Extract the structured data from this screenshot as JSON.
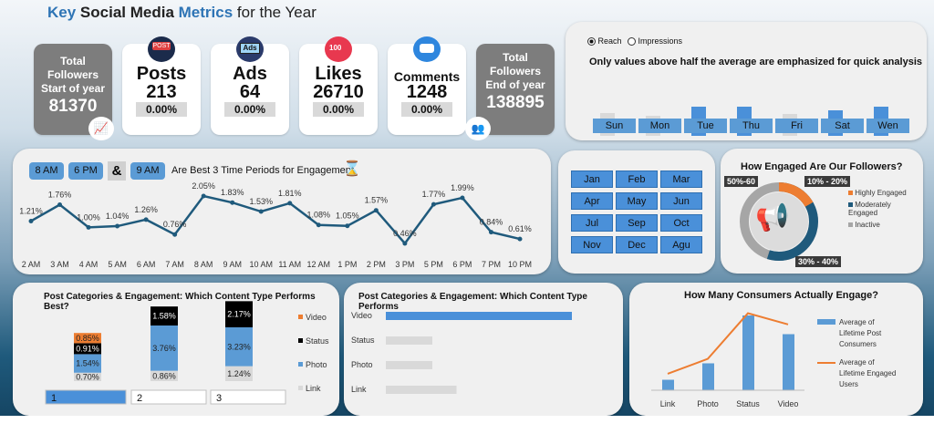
{
  "header": {
    "title_key": "Key",
    "title_social": "Social Media",
    "title_metrics": "Metrics",
    "title_rest": "for the Year"
  },
  "kpis": {
    "start": {
      "label1": "Total",
      "label2": "Followers",
      "label3": "Start of year",
      "value": "81370"
    },
    "posts": {
      "label": "Posts",
      "value": "213",
      "pct": "0.00%",
      "icon": "post-icon"
    },
    "ads": {
      "label": "Ads",
      "value": "64",
      "pct": "0.00%",
      "icon": "ads-icon"
    },
    "likes": {
      "label": "Likes",
      "value": "26710",
      "pct": "0.00%",
      "icon": "likes-icon",
      "badge": "100"
    },
    "comments": {
      "label": "Comments",
      "value": "1248",
      "pct": "0.00%",
      "icon": "comments-icon"
    },
    "end": {
      "label1": "Total",
      "label2": "Followers",
      "label3": "End of year",
      "value": "138895"
    }
  },
  "weekday_panel": {
    "option_reach": "Reach",
    "option_impressions": "Impressions",
    "selected": "Reach",
    "caption": "Only values above half the average are emphasized for quick analysis",
    "days": [
      "Sun",
      "Mon",
      "Tue",
      "Thu",
      "Fri",
      "Sat",
      "Wen"
    ],
    "emphasized": [
      false,
      false,
      true,
      true,
      false,
      true,
      true
    ],
    "relative_values": [
      0.45,
      0.4,
      0.58,
      0.58,
      0.44,
      0.5,
      0.58
    ]
  },
  "time_panel": {
    "best_1": "8 AM",
    "best_2": "6 PM",
    "amp": "&",
    "best_3": "9 AM",
    "caption": "Are Best 3 Time Periods for Engagement"
  },
  "chart_data": [
    {
      "type": "line",
      "x": [
        "2 AM",
        "3 AM",
        "4 AM",
        "5 AM",
        "6 AM",
        "7 AM",
        "8 AM",
        "9 AM",
        "10 AM",
        "11 AM",
        "12 AM",
        "1 PM",
        "2 PM",
        "3 PM",
        "5 PM",
        "6 PM",
        "7 PM",
        "10 PM"
      ],
      "values": [
        1.21,
        1.76,
        1.0,
        1.04,
        1.26,
        0.76,
        2.05,
        1.83,
        1.53,
        1.81,
        1.08,
        1.05,
        1.57,
        0.46,
        1.77,
        1.99,
        0.84,
        0.61
      ],
      "labels": [
        "1.21%",
        "1.76%",
        "1.00%",
        "1.04%",
        "1.26%",
        "0.76%",
        "2.05%",
        "1.83%",
        "1.53%",
        "1.81%",
        "1.08%",
        "1.05%",
        "1.57%",
        "0.46%",
        "1.77%",
        "1.99%",
        "0.84%",
        "0.61%"
      ],
      "color": "#1f5a7c"
    },
    {
      "type": "bar",
      "title": "Post Categories & Engagement: Which Content  Type Performs Best?",
      "stacked": true,
      "categories": [
        "1",
        "2",
        "3"
      ],
      "series": [
        {
          "name": "Video",
          "values": [
            0.85,
            0,
            0
          ],
          "labels": [
            "0.85%",
            "",
            ""
          ],
          "color": "#ed7d31"
        },
        {
          "name": "Status",
          "values": [
            0.91,
            1.58,
            2.17
          ],
          "labels": [
            "0.91%",
            "1.58%",
            "2.17%"
          ],
          "color": "#000000"
        },
        {
          "name": "Photo",
          "values": [
            1.54,
            3.76,
            3.23
          ],
          "labels": [
            "1.54%",
            "3.76%",
            "3.23%"
          ],
          "color": "#5b9bd5"
        },
        {
          "name": "Link",
          "values": [
            0.7,
            0.86,
            1.24
          ],
          "labels": [
            "0.70%",
            "0.86%",
            "1.24%"
          ],
          "color": "#d9d9d9"
        }
      ]
    },
    {
      "type": "bar",
      "title": "Post Categories & Engagement: Which Content Type Performs",
      "orientation": "horizontal",
      "categories": [
        "Video",
        "Status",
        "Photo",
        "Link"
      ],
      "values": [
        1.0,
        0.25,
        0.25,
        0.38
      ],
      "highlight": "Video"
    },
    {
      "type": "bar",
      "title": "How Many Consumers Actually Engage?",
      "categories": [
        "Link",
        "Photo",
        "Status",
        "Video"
      ],
      "series": [
        {
          "name": "Average of Lifetime Post Consumers",
          "values": [
            0.14,
            0.36,
            1.0,
            0.75
          ],
          "color": "#5b9bd5"
        },
        {
          "name": "Average of Lifetime Engaged Users",
          "values": [
            0.22,
            0.42,
            1.03,
            0.88
          ],
          "color": "#ed7d31"
        }
      ]
    }
  ],
  "months": [
    "Jan",
    "Feb",
    "Mar",
    "Apr",
    "May",
    "Jun",
    "Jul",
    "Sep",
    "Oct",
    "Nov",
    "Dec",
    "Agu"
  ],
  "engaged_panel": {
    "title": "How Engaged Are Our Followers?",
    "label_a": "50%-60",
    "label_b": "10% - 20%",
    "label_c": "30% - 40%",
    "legend": [
      {
        "name": "Highly Engaged",
        "color": "#ed7d31"
      },
      {
        "name": "Moderately Engaged",
        "color": "#1f5a7c"
      },
      {
        "name": "Inactive",
        "color": "#a6a6a6"
      }
    ]
  }
}
